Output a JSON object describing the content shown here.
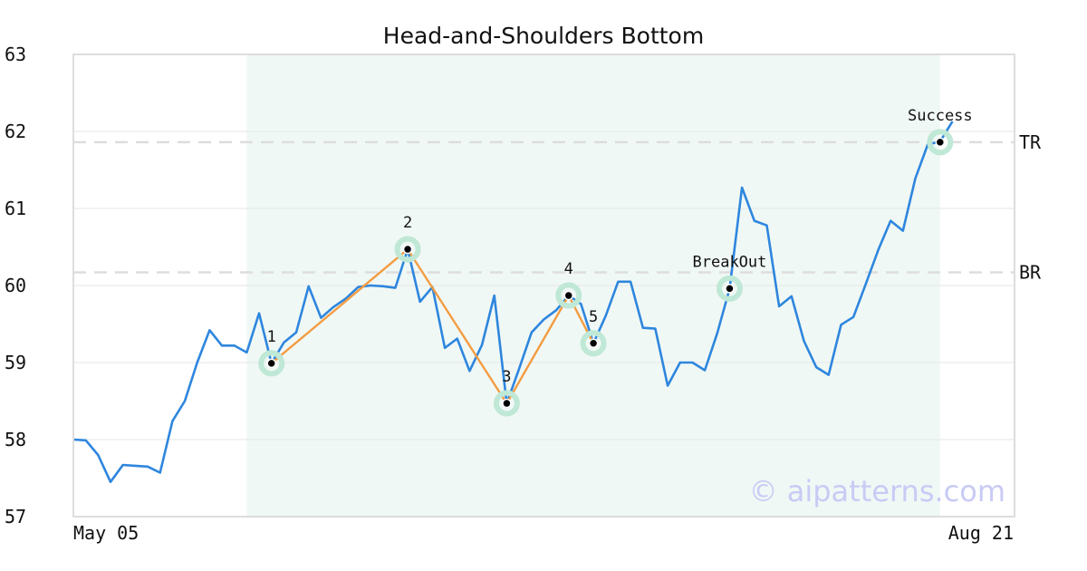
{
  "chart_data": {
    "type": "line",
    "title": "Head-and-Shoulders Bottom",
    "x_labels": [
      "May 05",
      "Aug 21"
    ],
    "ylim": [
      57,
      63
    ],
    "yticks": [
      57,
      58,
      59,
      60,
      61,
      62,
      63
    ],
    "grid": true,
    "series": [
      {
        "values": [
          58.0,
          57.99,
          57.8,
          57.45,
          57.67,
          57.66,
          57.65,
          57.57,
          58.24,
          58.5,
          59.0,
          59.42,
          59.22,
          59.22,
          59.13,
          59.64,
          58.99,
          59.26,
          59.39,
          59.99,
          59.58,
          59.72,
          59.83,
          59.98,
          60.0,
          59.99,
          59.97,
          60.47,
          59.79,
          59.98,
          59.19,
          59.31,
          58.89,
          59.23,
          59.87,
          58.47,
          58.92,
          59.39,
          59.56,
          59.68,
          59.87,
          59.76,
          59.25,
          59.61,
          60.05,
          60.05,
          59.45,
          59.44,
          58.7,
          59.0,
          59.0,
          58.9,
          59.38,
          59.96,
          61.27,
          60.84,
          60.78,
          59.73,
          59.86,
          59.28,
          58.94,
          58.84,
          59.49,
          59.59,
          60.02,
          60.46,
          60.84,
          60.71,
          61.39,
          61.83,
          61.87,
          62.13
        ],
        "color": "#2e86de"
      }
    ],
    "pattern_region": {
      "start_index": 14,
      "end_index": 70,
      "color": "#e6f4ee"
    },
    "pattern_points": [
      {
        "label": "1",
        "index": 16,
        "value": 58.99
      },
      {
        "label": "2",
        "index": 27,
        "value": 60.47
      },
      {
        "label": "3",
        "index": 35,
        "value": 58.47
      },
      {
        "label": "4",
        "index": 40,
        "value": 59.87
      },
      {
        "label": "5",
        "index": 42,
        "value": 59.25
      }
    ],
    "pattern_line_color": "#f39c42",
    "events": [
      {
        "label": "BreakOut",
        "index": 53,
        "value": 59.96
      },
      {
        "label": "Success",
        "index": 70,
        "value": 61.86
      }
    ],
    "hlines": [
      {
        "label": "TR",
        "value": 61.86
      },
      {
        "label": "BR",
        "value": 60.17
      }
    ],
    "marker_halo_color": "#bfe8d6",
    "watermark": "© aipatterns.com"
  }
}
